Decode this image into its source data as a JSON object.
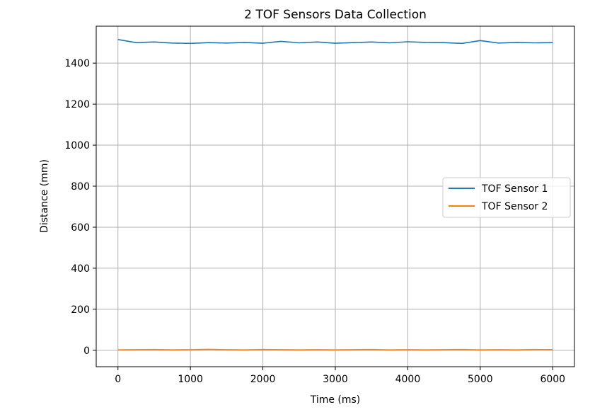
{
  "chart_data": {
    "type": "line",
    "title": "2 TOF Sensors Data Collection",
    "xlabel": "Time (ms)",
    "ylabel": "Distance (mm)",
    "xlim": [
      -300,
      6300
    ],
    "ylim": [
      -80,
      1580
    ],
    "xticks": [
      0,
      1000,
      2000,
      3000,
      4000,
      5000,
      6000
    ],
    "yticks": [
      0,
      200,
      400,
      600,
      800,
      1000,
      1200,
      1400
    ],
    "grid": true,
    "legend_position": "center-right",
    "series": [
      {
        "name": "TOF Sensor 1",
        "color": "#1f77b4",
        "x": [
          0,
          250,
          500,
          750,
          1000,
          1250,
          1500,
          1750,
          2000,
          2250,
          2500,
          2750,
          3000,
          3250,
          3500,
          3750,
          4000,
          4250,
          4500,
          4750,
          5000,
          5250,
          5500,
          5750,
          6000
        ],
        "y": [
          1515,
          1500,
          1503,
          1498,
          1496,
          1500,
          1498,
          1501,
          1497,
          1506,
          1499,
          1503,
          1497,
          1500,
          1503,
          1499,
          1504,
          1501,
          1500,
          1496,
          1510,
          1498,
          1501,
          1499,
          1500
        ]
      },
      {
        "name": "TOF Sensor 2",
        "color": "#ff7f0e",
        "x": [
          0,
          250,
          500,
          750,
          1000,
          1250,
          1500,
          1750,
          2000,
          2250,
          2500,
          2750,
          3000,
          3250,
          3500,
          3750,
          4000,
          4250,
          4500,
          4750,
          5000,
          5250,
          5500,
          5750,
          6000
        ],
        "y": [
          2,
          3,
          4,
          2,
          3,
          5,
          3,
          2,
          4,
          3,
          2,
          3,
          2,
          3,
          4,
          2,
          3,
          2,
          3,
          4,
          2,
          3,
          2,
          4,
          3
        ]
      }
    ]
  }
}
